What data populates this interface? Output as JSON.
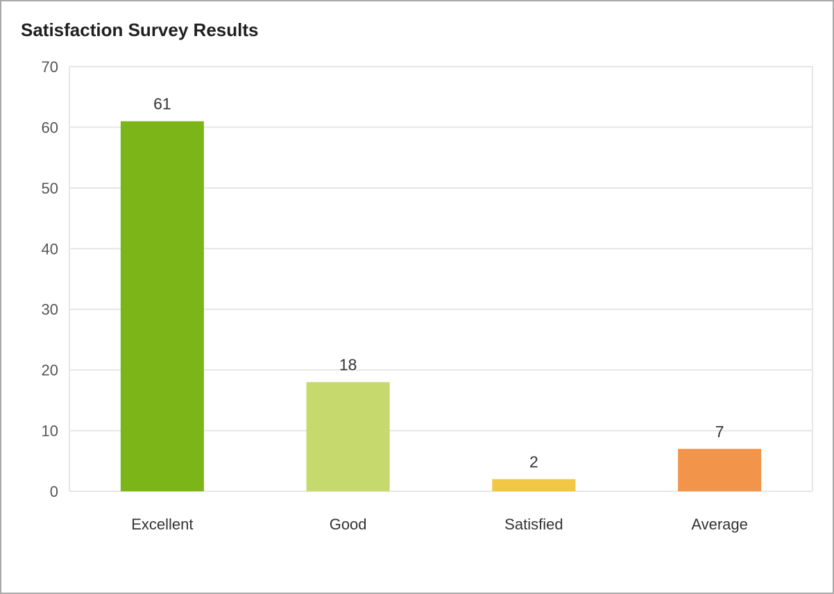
{
  "chart_data": {
    "type": "bar",
    "title": "Satisfaction Survey Results",
    "xlabel": "",
    "ylabel": "",
    "categories": [
      "Excellent",
      "Good",
      "Satisfied",
      "Average"
    ],
    "values": [
      61,
      18,
      2,
      7
    ],
    "data_labels": [
      "61",
      "18",
      "2",
      "7"
    ],
    "ylim": [
      0,
      70
    ],
    "yticks": [
      0,
      10,
      20,
      30,
      40,
      50,
      60,
      70
    ],
    "ytick_labels": [
      "0",
      "10",
      "20",
      "30",
      "40",
      "50",
      "60",
      "70"
    ],
    "bar_colors": [
      "#7cb518",
      "#c5d96d",
      "#f2c744",
      "#f2954b"
    ],
    "grid": true,
    "legend": "none"
  },
  "colors": {
    "grid": "#e6e6e6",
    "axis_text": "#555555",
    "label_text": "#333333",
    "title_text": "#1f1f1f",
    "border": "#a9a9a9"
  }
}
